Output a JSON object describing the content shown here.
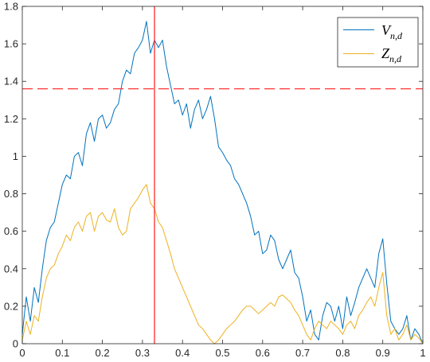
{
  "chart_data": {
    "type": "line",
    "title": "",
    "xlabel": "",
    "ylabel": "",
    "xlim": [
      0,
      1
    ],
    "ylim": [
      0,
      1.8
    ],
    "x_ticks": [
      "0",
      "0.1",
      "0.2",
      "0.3",
      "0.4",
      "0.5",
      "0.6",
      "0.7",
      "0.8",
      "0.9",
      "1"
    ],
    "y_ticks": [
      "0",
      "0.2",
      "0.4",
      "0.6",
      "0.8",
      "1",
      "1.2",
      "1.4",
      "1.6",
      "1.8"
    ],
    "grid": false,
    "legend_position": "top-right",
    "reference_lines": [
      {
        "orientation": "horizontal",
        "value": 1.36,
        "style": "dashed",
        "color": "#ff3333"
      },
      {
        "orientation": "vertical",
        "value": 0.33,
        "style": "solid",
        "color": "#ff2a2a"
      }
    ],
    "series": [
      {
        "name_main": "V",
        "name_sub": "n,d",
        "color": "#0072bd",
        "x": [
          0.0,
          0.01,
          0.02,
          0.03,
          0.04,
          0.05,
          0.06,
          0.07,
          0.08,
          0.09,
          0.1,
          0.11,
          0.12,
          0.13,
          0.14,
          0.15,
          0.16,
          0.17,
          0.18,
          0.19,
          0.2,
          0.21,
          0.22,
          0.23,
          0.24,
          0.25,
          0.26,
          0.27,
          0.28,
          0.29,
          0.3,
          0.31,
          0.32,
          0.33,
          0.34,
          0.35,
          0.36,
          0.37,
          0.38,
          0.39,
          0.4,
          0.41,
          0.42,
          0.43,
          0.44,
          0.45,
          0.46,
          0.47,
          0.48,
          0.49,
          0.5,
          0.51,
          0.52,
          0.53,
          0.54,
          0.55,
          0.56,
          0.57,
          0.58,
          0.59,
          0.6,
          0.61,
          0.62,
          0.63,
          0.64,
          0.65,
          0.66,
          0.67,
          0.68,
          0.69,
          0.7,
          0.71,
          0.72,
          0.73,
          0.74,
          0.75,
          0.76,
          0.77,
          0.78,
          0.79,
          0.8,
          0.81,
          0.82,
          0.83,
          0.84,
          0.85,
          0.86,
          0.87,
          0.88,
          0.89,
          0.9,
          0.91,
          0.92,
          0.93,
          0.94,
          0.95,
          0.96,
          0.97,
          0.98,
          0.99,
          1.0
        ],
        "y": [
          0.05,
          0.25,
          0.12,
          0.3,
          0.22,
          0.4,
          0.55,
          0.62,
          0.65,
          0.75,
          0.85,
          0.9,
          0.88,
          1.0,
          1.02,
          0.95,
          1.12,
          1.18,
          1.08,
          1.2,
          1.22,
          1.15,
          1.18,
          1.25,
          1.28,
          1.4,
          1.46,
          1.44,
          1.55,
          1.58,
          1.62,
          1.72,
          1.55,
          1.62,
          1.58,
          1.62,
          1.48,
          1.38,
          1.28,
          1.3,
          1.22,
          1.28,
          1.15,
          1.25,
          1.3,
          1.2,
          1.25,
          1.32,
          1.2,
          1.05,
          1.02,
          0.98,
          0.95,
          0.88,
          0.85,
          0.8,
          0.75,
          0.68,
          0.58,
          0.6,
          0.48,
          0.5,
          0.58,
          0.55,
          0.45,
          0.4,
          0.45,
          0.5,
          0.38,
          0.35,
          0.25,
          0.12,
          0.18,
          0.05,
          0.02,
          0.15,
          0.22,
          0.2,
          0.12,
          0.2,
          0.08,
          0.25,
          0.15,
          0.22,
          0.3,
          0.35,
          0.4,
          0.35,
          0.3,
          0.48,
          0.56,
          0.32,
          0.12,
          0.08,
          0.05,
          0.08,
          0.15,
          0.02,
          0.08,
          0.05,
          0.0
        ]
      },
      {
        "name_main": "Z",
        "name_sub": "n,d",
        "color": "#edb120",
        "x": [
          0.0,
          0.01,
          0.02,
          0.03,
          0.04,
          0.05,
          0.06,
          0.07,
          0.08,
          0.09,
          0.1,
          0.11,
          0.12,
          0.13,
          0.14,
          0.15,
          0.16,
          0.17,
          0.18,
          0.19,
          0.2,
          0.21,
          0.22,
          0.23,
          0.24,
          0.25,
          0.26,
          0.27,
          0.28,
          0.29,
          0.3,
          0.31,
          0.32,
          0.33,
          0.34,
          0.35,
          0.36,
          0.37,
          0.38,
          0.39,
          0.4,
          0.41,
          0.42,
          0.43,
          0.44,
          0.45,
          0.46,
          0.47,
          0.48,
          0.49,
          0.5,
          0.51,
          0.52,
          0.53,
          0.54,
          0.55,
          0.56,
          0.57,
          0.58,
          0.59,
          0.6,
          0.61,
          0.62,
          0.63,
          0.64,
          0.65,
          0.66,
          0.67,
          0.68,
          0.69,
          0.7,
          0.71,
          0.72,
          0.73,
          0.74,
          0.75,
          0.76,
          0.77,
          0.78,
          0.79,
          0.8,
          0.81,
          0.82,
          0.83,
          0.84,
          0.85,
          0.86,
          0.87,
          0.88,
          0.89,
          0.9,
          0.91,
          0.92,
          0.93,
          0.94,
          0.95,
          0.96,
          0.97,
          0.98,
          0.99,
          1.0
        ],
        "y": [
          0.02,
          0.12,
          0.05,
          0.15,
          0.12,
          0.25,
          0.35,
          0.4,
          0.42,
          0.48,
          0.52,
          0.58,
          0.55,
          0.62,
          0.65,
          0.6,
          0.68,
          0.7,
          0.6,
          0.68,
          0.7,
          0.66,
          0.65,
          0.72,
          0.62,
          0.58,
          0.6,
          0.72,
          0.75,
          0.78,
          0.82,
          0.85,
          0.75,
          0.72,
          0.65,
          0.62,
          0.55,
          0.48,
          0.4,
          0.35,
          0.3,
          0.25,
          0.2,
          0.15,
          0.1,
          0.08,
          0.05,
          0.02,
          0.0,
          0.02,
          0.05,
          0.08,
          0.1,
          0.12,
          0.15,
          0.18,
          0.2,
          0.2,
          0.18,
          0.16,
          0.18,
          0.2,
          0.22,
          0.2,
          0.25,
          0.26,
          0.24,
          0.22,
          0.18,
          0.15,
          0.1,
          0.05,
          0.02,
          0.08,
          0.12,
          0.1,
          0.08,
          0.12,
          0.1,
          0.08,
          0.05,
          0.1,
          0.12,
          0.08,
          0.15,
          0.18,
          0.22,
          0.25,
          0.2,
          0.3,
          0.38,
          0.15,
          0.05,
          0.08,
          0.02,
          0.05,
          0.1,
          0.02,
          0.05,
          0.03,
          0.0
        ]
      }
    ]
  }
}
